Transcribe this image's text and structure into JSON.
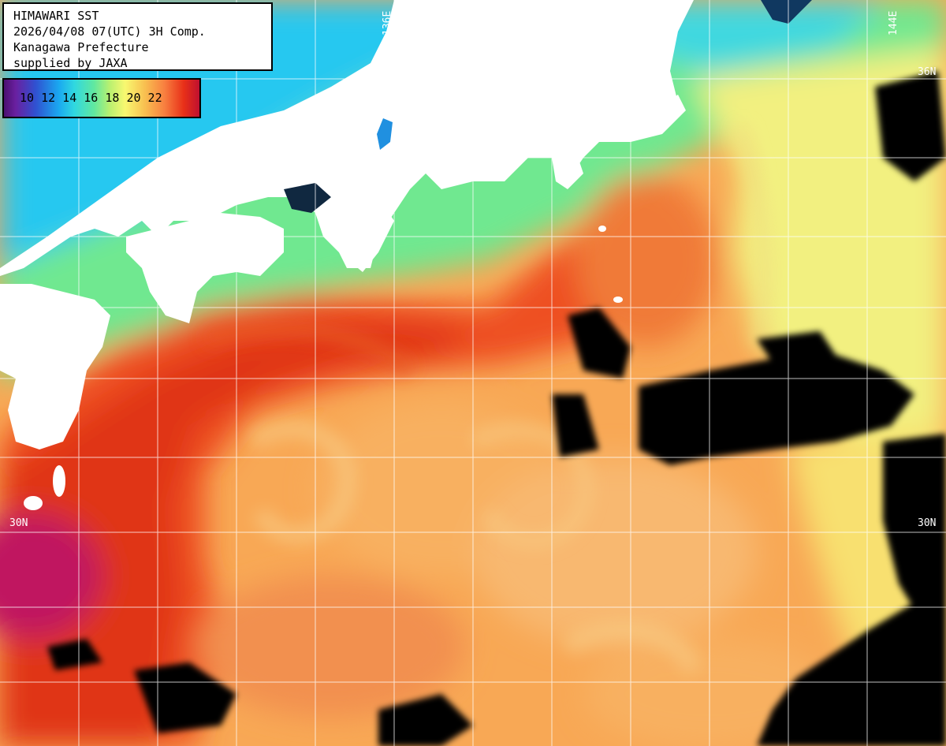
{
  "header": {
    "title": "HIMAWARI SST",
    "timestamp": "2026/04/08 07(UTC) 3H Comp.",
    "organization": "Kanagawa Prefecture",
    "credit": "supplied by JAXA"
  },
  "legend": {
    "unit_values": [
      "10",
      "12",
      "14",
      "16",
      "18",
      "20",
      "22"
    ],
    "label_text": "10 12 14 16 18 20 22"
  },
  "grid_labels": {
    "lon_136": "136E",
    "lon_144": "144E",
    "lat_36": "36N",
    "lat_30_left": "30N",
    "lat_30_right": "30N"
  },
  "colors": {
    "land": "#ffffff",
    "cloud_mask": "#000000",
    "gridline": "#ffffff",
    "cold_sea": "#1aa8f0",
    "cool_sea": "#60e8a0",
    "mild_sea": "#f8f870",
    "warm_sea": "#f8a050",
    "hot_sea": "#e83018",
    "kuroshio_core": "#d82010",
    "very_hot": "#b81060"
  }
}
